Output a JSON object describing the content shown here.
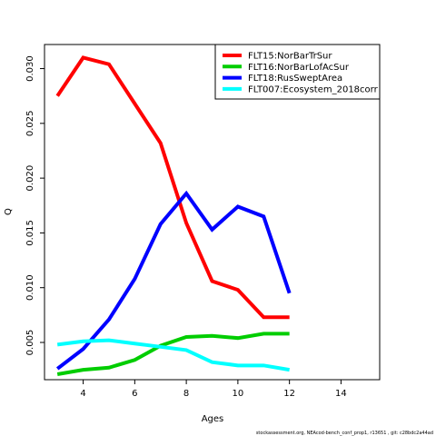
{
  "chart_data": {
    "type": "line",
    "xlabel": "Ages",
    "ylabel": "Q",
    "xlim": [
      2.5,
      15.5
    ],
    "ylim": [
      0.0016,
      0.0322
    ],
    "x_ticks": [
      4,
      6,
      8,
      10,
      12,
      14
    ],
    "y_ticks": [
      0.005,
      0.01,
      0.015,
      0.02,
      0.025,
      0.03
    ],
    "y_tick_labels": [
      "0.005",
      "0.010",
      "0.015",
      "0.020",
      "0.025",
      "0.030"
    ],
    "legend_position": "top-right",
    "grid": false,
    "x": [
      3,
      4,
      5,
      6,
      7,
      8,
      9,
      10,
      11,
      12
    ],
    "series": [
      {
        "name": "FLT15:NorBarTrSur",
        "color": "#ff0000",
        "values": [
          0.0275,
          0.031,
          0.0304,
          0.0268,
          0.0232,
          0.0159,
          0.0106,
          0.0098,
          0.0073,
          0.0073
        ]
      },
      {
        "name": "FLT16:NorBarLofAcSur",
        "color": "#00cd00",
        "values": [
          0.0021,
          0.0025,
          0.0027,
          0.0034,
          0.0047,
          0.0055,
          0.0056,
          0.0054,
          0.0058,
          0.0058
        ]
      },
      {
        "name": "FLT18:RusSweptArea",
        "color": "#0000ff",
        "values": [
          0.0026,
          0.0044,
          0.0071,
          0.0108,
          0.0158,
          0.0186,
          0.0153,
          0.0174,
          0.0165,
          0.0095
        ]
      },
      {
        "name": "FLT007:Ecosystem_2018corr",
        "color": "#00ffff",
        "values": [
          0.0048,
          0.0051,
          0.0052,
          0.0049,
          0.0046,
          0.0043,
          0.0032,
          0.0029,
          0.0029,
          0.0025
        ]
      }
    ]
  },
  "footer": "stockassessment.org, NEAcod-bench_conf_prop1, r13651 , git: c28bdc2a44ad"
}
